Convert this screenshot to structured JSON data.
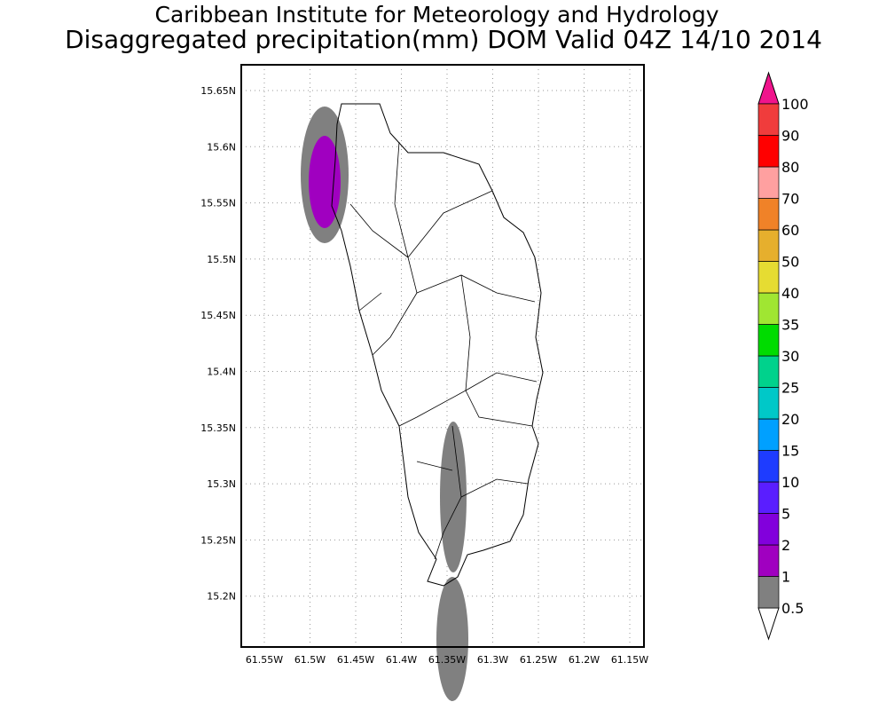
{
  "title_line1": "Caribbean Institute for Meteorology and Hydrology",
  "title_line2": "Disaggregated precipitation(mm) DOM Valid 04Z 14/10 2014",
  "lat_ticks": [
    "15.65N",
    "15.6N",
    "15.55N",
    "15.5N",
    "15.45N",
    "15.4N",
    "15.35N",
    "15.3N",
    "15.25N",
    "15.2N"
  ],
  "lon_ticks": [
    "61.55W",
    "61.5W",
    "61.45W",
    "61.4W",
    "61.35W",
    "61.3W",
    "61.25W",
    "61.2W",
    "61.15W"
  ],
  "colorbar": {
    "labels": [
      "0.5",
      "1",
      "2",
      "5",
      "10",
      "15",
      "20",
      "25",
      "30",
      "35",
      "40",
      "50",
      "60",
      "70",
      "80",
      "90",
      "100"
    ],
    "colors": [
      "#808080",
      "#a000c0",
      "#8200dc",
      "#5a1eff",
      "#1e3cff",
      "#00a0ff",
      "#00c8c8",
      "#00d28c",
      "#00dc00",
      "#a0e632",
      "#e6dc32",
      "#e6af2d",
      "#f08228",
      "#ffa0a0",
      "#ff0000",
      "#f03c3c"
    ],
    "under_color": "#ffffff",
    "over_color": "#f0148c"
  },
  "precip_colors": {
    "gray": "#808080",
    "purple": "#a000c0"
  }
}
